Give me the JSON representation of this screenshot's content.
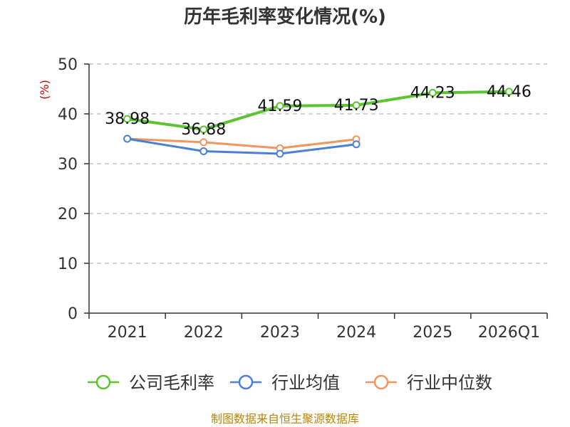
{
  "chart_data": {
    "type": "line",
    "title": "历年毛利率变化情况(%)",
    "ylabel": "(%)",
    "xlabel": "",
    "categories": [
      "2021",
      "2022",
      "2023",
      "2024",
      "2025",
      "2026Q1"
    ],
    "ylim": [
      0,
      50
    ],
    "yticks": [
      0,
      10,
      20,
      30,
      40,
      50
    ],
    "grid": true,
    "legend_position": "bottom",
    "series": [
      {
        "name": "公司毛利率",
        "color": "#5cc430",
        "values": [
          38.98,
          36.88,
          41.59,
          41.73,
          44.23,
          44.46
        ],
        "labels": [
          "38.98",
          "36.88",
          "41.59",
          "41.73",
          "44.23",
          "44.46"
        ]
      },
      {
        "name": "行业均值",
        "color": "#4a80d8",
        "values": [
          35.0,
          32.5,
          32.0,
          33.9,
          null,
          null
        ]
      },
      {
        "name": "行业中位数",
        "color": "#f2955e",
        "values": [
          35.0,
          34.3,
          33.1,
          34.9,
          null,
          null
        ]
      }
    ],
    "source": "制图数据来自恒生聚源数据库"
  }
}
